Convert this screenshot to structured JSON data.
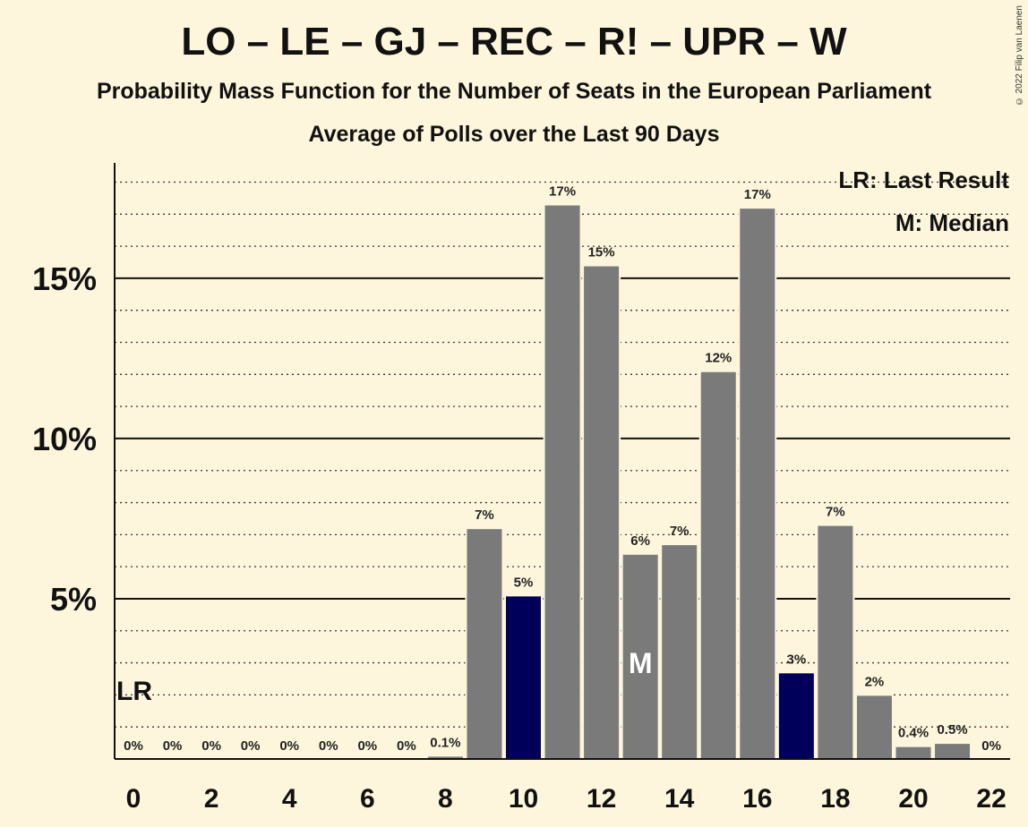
{
  "copyright": "© 2022 Filip van Laenen",
  "chart_data": {
    "type": "bar",
    "title": "LO – LE – GJ – REC – R! – UPR – W",
    "subtitle": "Probability Mass Function for the Number of Seats in the European Parliament",
    "subtitle2": "Average of Polls over the Last 90 Days",
    "x": [
      0,
      1,
      2,
      3,
      4,
      5,
      6,
      7,
      8,
      9,
      10,
      11,
      12,
      13,
      14,
      15,
      16,
      17,
      18,
      19,
      20,
      21,
      22
    ],
    "values": [
      0,
      0,
      0,
      0,
      0,
      0,
      0,
      0,
      0.1,
      7.2,
      5.1,
      17.3,
      15.4,
      6.4,
      6.7,
      12.1,
      17.2,
      2.7,
      7.3,
      2.0,
      0.4,
      0.5,
      0
    ],
    "data_labels": [
      "0%",
      "0%",
      "0%",
      "0%",
      "0%",
      "0%",
      "0%",
      "0%",
      "0.1%",
      "7%",
      "5%",
      "17%",
      "15%",
      "6%",
      "7%",
      "12%",
      "17%",
      "3%",
      "7%",
      "2%",
      "0.4%",
      "0.5%",
      "0%"
    ],
    "x_ticks": [
      "0",
      "2",
      "4",
      "6",
      "8",
      "10",
      "12",
      "14",
      "16",
      "18",
      "20",
      "22"
    ],
    "y_ticks": [
      {
        "value": 5,
        "label": "5%"
      },
      {
        "value": 10,
        "label": "10%"
      },
      {
        "value": 15,
        "label": "15%"
      }
    ],
    "ylim": [
      0,
      18.6
    ],
    "minor_grid_step": 1,
    "highlight_x": [
      10,
      17
    ],
    "bar_color": "#7A7A7A",
    "highlight_color": "#00005A",
    "background": "#FDF6DC",
    "last_result": {
      "x": 0,
      "label": "LR"
    },
    "median": {
      "x": 13,
      "label": "M"
    },
    "legend": [
      "LR: Last Result",
      "M: Median"
    ],
    "legend_position": "top-right"
  }
}
